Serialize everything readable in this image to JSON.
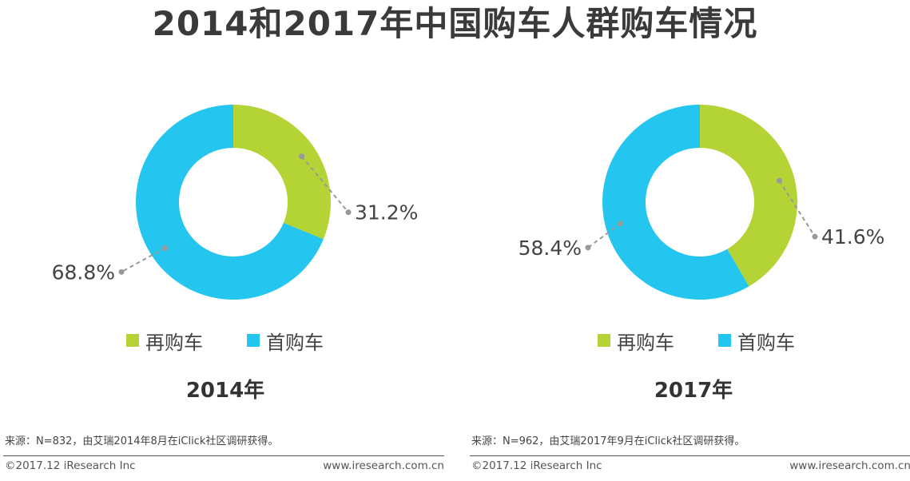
{
  "title": "2014和2017年中国购车人群购车情况",
  "colors": {
    "repurchase": "#b4d334",
    "first": "#24c6f0",
    "leader": "#999999"
  },
  "chart_data": [
    {
      "type": "pie",
      "year_label": "2014年",
      "categories": [
        "再购车",
        "首购车"
      ],
      "values": [
        31.2,
        68.8
      ],
      "value_labels": [
        "31.2%",
        "68.8%"
      ],
      "source": "来源：N=832，由艾瑞2014年8月在iClick社区调研获得。"
    },
    {
      "type": "pie",
      "year_label": "2017年",
      "categories": [
        "再购车",
        "首购车"
      ],
      "values": [
        41.6,
        58.4
      ],
      "value_labels": [
        "41.6%",
        "58.4%"
      ],
      "source": "来源：N=962，由艾瑞2017年9月在iClick社区调研获得。"
    }
  ],
  "legend": {
    "repurchase": "再购车",
    "first": "首购车"
  },
  "footer": {
    "copyright": "©2017.12 iResearch Inc",
    "website": "www.iresearch.com.cn"
  }
}
